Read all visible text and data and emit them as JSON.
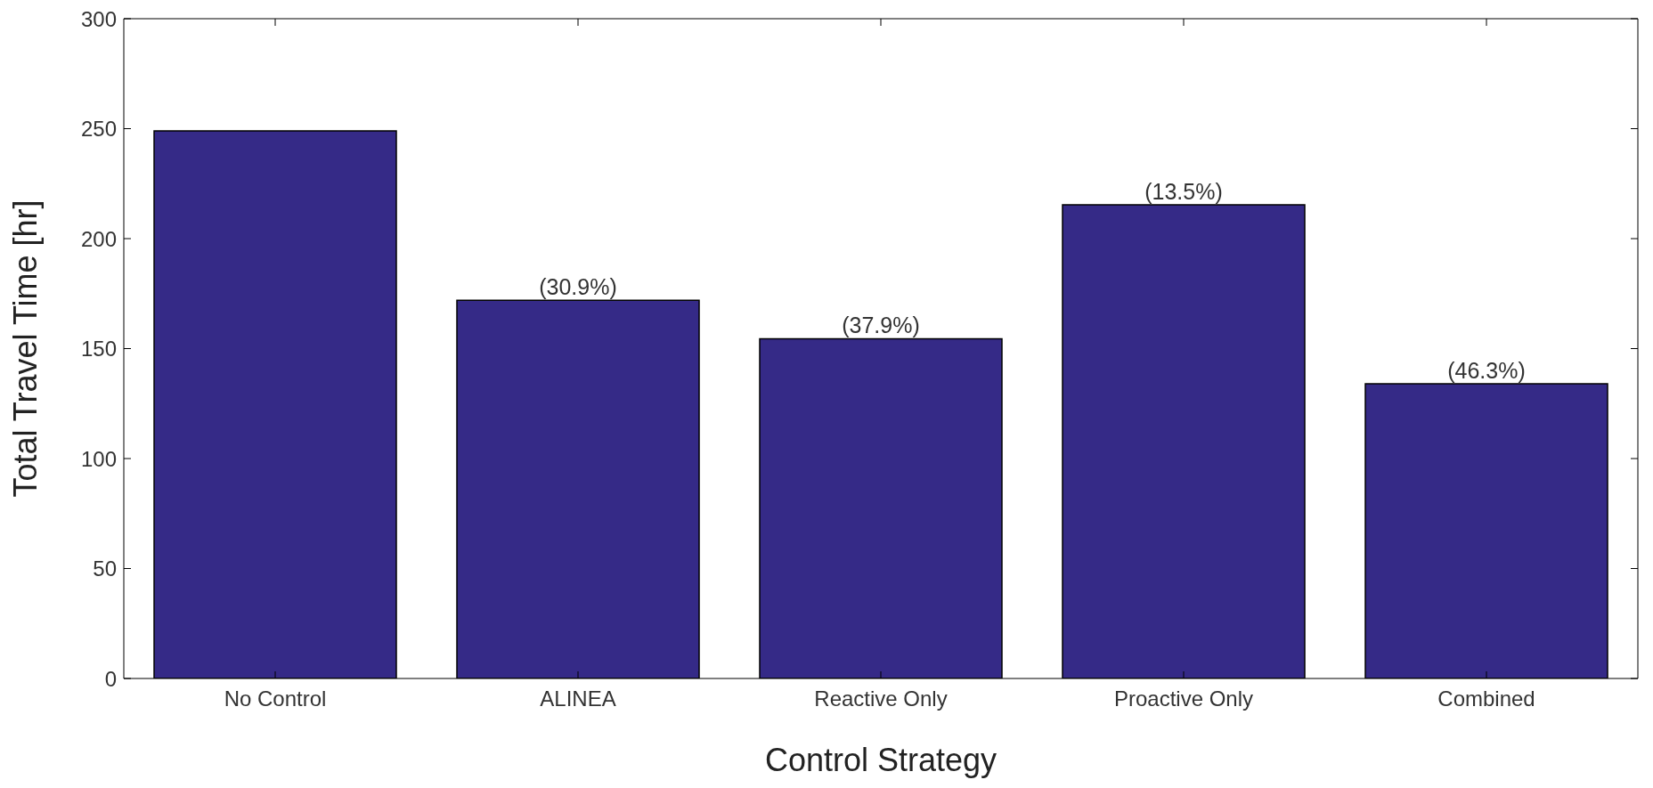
{
  "chart_data": {
    "type": "bar",
    "categories": [
      "No Control",
      "ALINEA",
      "Reactive Only",
      "Proactive Only",
      "Combined"
    ],
    "values": [
      249,
      172,
      154.5,
      215.4,
      134
    ],
    "annotations": [
      {
        "text": "(30.9%)",
        "x": "ALINEA",
        "y": 172
      },
      {
        "text": "(37.9%)",
        "x": "Reactive Only",
        "y": 154.5
      },
      {
        "text": "(13.5%)",
        "x": "Proactive Only",
        "y": 215.4
      },
      {
        "text": "(46.3%)",
        "x": "Combined",
        "y": 134
      }
    ],
    "color": "#352a87",
    "xlabel": "Control Strategy",
    "ylabel": "Total Travel Time [hr]",
    "ylim": [
      0,
      300
    ],
    "yticks": [
      0,
      50,
      100,
      150,
      200,
      250,
      300
    ],
    "grid": false
  }
}
